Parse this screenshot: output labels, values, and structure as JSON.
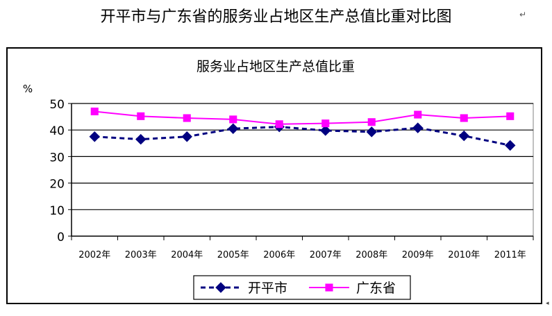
{
  "document": {
    "title": "开平市与广东省的服务业占地区生产总值比重对比图",
    "return_mark": "↵",
    "corner_mark": "◂"
  },
  "chart_data": {
    "type": "line",
    "title": "服务业占地区生产总值比重",
    "ylabel": "%",
    "xlabel": "",
    "ylim": [
      0,
      50
    ],
    "yticks": [
      0,
      10,
      20,
      30,
      40,
      50
    ],
    "grid": true,
    "legend": "bottom",
    "categories": [
      "2002年",
      "2003年",
      "2004年",
      "2005年",
      "2006年",
      "2007年",
      "2008年",
      "2009年",
      "2010年",
      "2011年"
    ],
    "series": [
      {
        "name": "开平市",
        "color": "#000080",
        "marker": "diamond",
        "line": "dashed",
        "values": [
          37.5,
          36.5,
          37.5,
          40.5,
          41.2,
          39.8,
          39.3,
          40.8,
          37.8,
          34.2
        ]
      },
      {
        "name": "广东省",
        "color": "#ff00ff",
        "marker": "square",
        "line": "solid",
        "values": [
          47.0,
          45.2,
          44.5,
          44.0,
          42.2,
          42.5,
          43.0,
          45.8,
          44.5,
          45.2
        ]
      }
    ]
  }
}
